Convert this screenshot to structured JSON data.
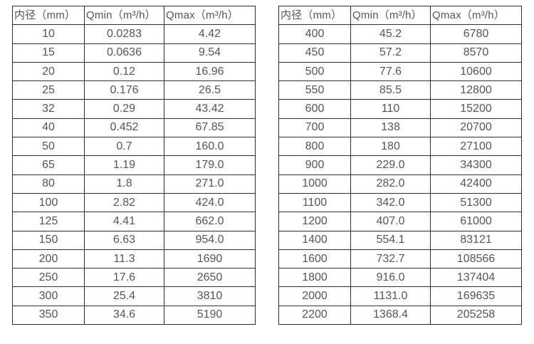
{
  "colors": {
    "background": "#ffffff",
    "border": "#2e2e2e",
    "text": "#555555"
  },
  "tables": [
    {
      "name": "small-diameter-flow-table",
      "headers": [
        "内径（mm）",
        "Qmin（m³/h）",
        "Qmax（m³/h）"
      ],
      "rows": [
        [
          "10",
          "0.0283",
          "4.42"
        ],
        [
          "15",
          "0.0636",
          "9.54"
        ],
        [
          "20",
          "0.12",
          "16.96"
        ],
        [
          "25",
          "0.176",
          "26.5"
        ],
        [
          "32",
          "0.29",
          "43.42"
        ],
        [
          "40",
          "0.452",
          "67.85"
        ],
        [
          "50",
          "0.7",
          "160.0"
        ],
        [
          "65",
          "1.19",
          "179.0"
        ],
        [
          "80",
          "1.8",
          "271.0"
        ],
        [
          "100",
          "2.82",
          "424.0"
        ],
        [
          "125",
          "4.41",
          "662.0"
        ],
        [
          "150",
          "6.63",
          "954.0"
        ],
        [
          "200",
          "11.3",
          "1690"
        ],
        [
          "250",
          "17.6",
          "2650"
        ],
        [
          "300",
          "25.4",
          "3810"
        ],
        [
          "350",
          "34.6",
          "5190"
        ]
      ]
    },
    {
      "name": "large-diameter-flow-table",
      "headers": [
        "内径（mm）",
        "Qmin（m³/h）",
        "Qmax（m³/h）"
      ],
      "rows": [
        [
          "400",
          "45.2",
          "6780"
        ],
        [
          "450",
          "57.2",
          "8570"
        ],
        [
          "500",
          "77.6",
          "10600"
        ],
        [
          "550",
          "85.5",
          "12800"
        ],
        [
          "600",
          "110",
          "15200"
        ],
        [
          "700",
          "138",
          "20700"
        ],
        [
          "800",
          "180",
          "27100"
        ],
        [
          "900",
          "229.0",
          "34300"
        ],
        [
          "1000",
          "282.0",
          "42400"
        ],
        [
          "1100",
          "342.0",
          "51300"
        ],
        [
          "1200",
          "407.0",
          "61000"
        ],
        [
          "1400",
          "554.1",
          "83121"
        ],
        [
          "1600",
          "732.7",
          "108566"
        ],
        [
          "1800",
          "916.0",
          "137404"
        ],
        [
          "2000",
          "1131.0",
          "169635"
        ],
        [
          "2200",
          "1368.4",
          "205258"
        ]
      ]
    }
  ]
}
